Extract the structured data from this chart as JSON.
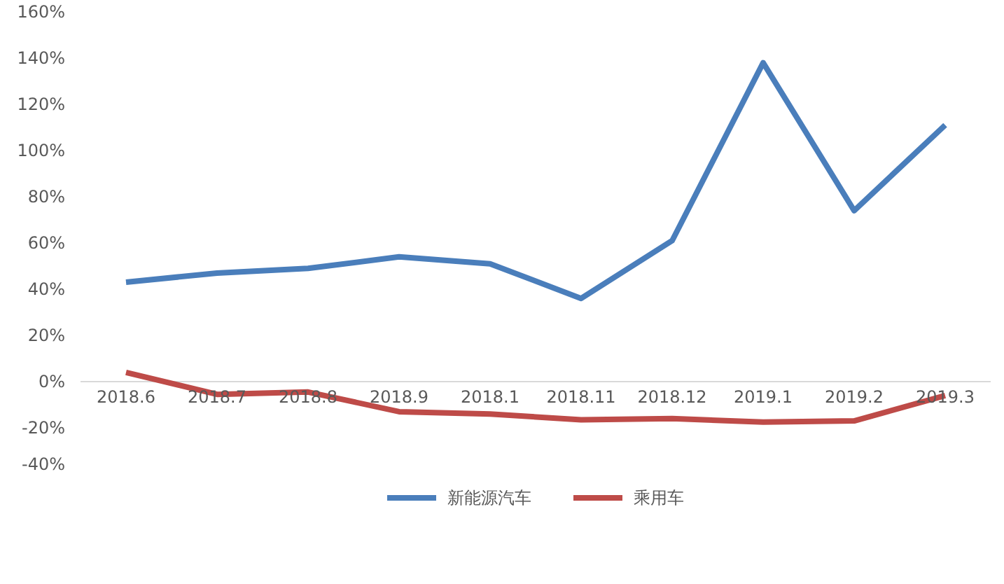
{
  "chart_data": {
    "type": "line",
    "categories": [
      "2018.6",
      "2018.7",
      "2018.8",
      "2018.9",
      "2018.1",
      "2018.11",
      "2018.12",
      "2019.1",
      "2019.2",
      "2019.3"
    ],
    "series": [
      {
        "name": "新能源汽车",
        "color": "#4a7ebb",
        "values": [
          43,
          47,
          49,
          54,
          51,
          36,
          61,
          138,
          74,
          111
        ]
      },
      {
        "name": "乘用车",
        "color": "#be4b48",
        "values": [
          4,
          -5.5,
          -4.5,
          -13,
          -14,
          -16.5,
          -16,
          -17.5,
          -17,
          -6
        ]
      }
    ],
    "ylim": [
      -40,
      160
    ],
    "yticks": [
      {
        "value": -40,
        "label": "-40%"
      },
      {
        "value": -20,
        "label": "-20%"
      },
      {
        "value": 0,
        "label": "0%"
      },
      {
        "value": 20,
        "label": "20%"
      },
      {
        "value": 40,
        "label": "40%"
      },
      {
        "value": 60,
        "label": "60%"
      },
      {
        "value": 80,
        "label": "80%"
      },
      {
        "value": 100,
        "label": "100%"
      },
      {
        "value": 120,
        "label": "120%"
      },
      {
        "value": 140,
        "label": "140%"
      },
      {
        "value": 160,
        "label": "160%"
      }
    ],
    "grid": false,
    "legend": "bottom",
    "marker": "none",
    "line_style": "solid"
  }
}
